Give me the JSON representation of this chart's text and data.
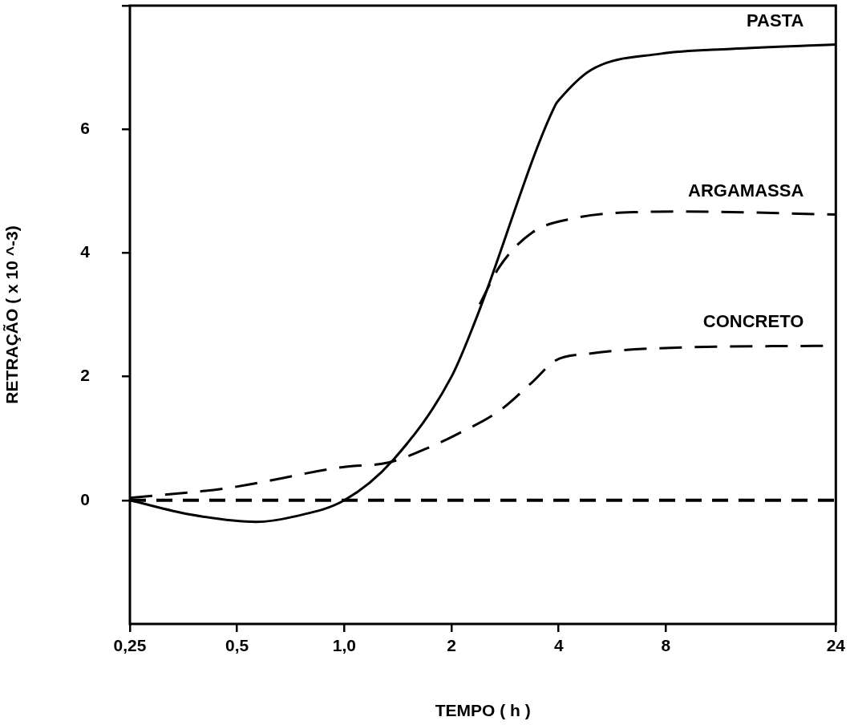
{
  "chart_data": {
    "type": "line",
    "xlabel": "TEMPO ( h )",
    "ylabel": "RETRAÇÃO ( x 10 ^-3)",
    "log": "x",
    "xlim": [
      0.25,
      24
    ],
    "xticks": [
      {
        "value": 0.25,
        "label": "0,25"
      },
      {
        "value": 0.5,
        "label": "0,5"
      },
      {
        "value": 1,
        "label": "1,0"
      },
      2,
      4,
      8,
      24
    ],
    "ylim": [
      -2,
      8
    ],
    "yticks": [
      0,
      2,
      4,
      6,
      {
        "value": 8,
        "label": null
      }
    ],
    "grid": false,
    "legend": false,
    "marker": "none",
    "ref_lines": [
      {
        "axis": "y",
        "value": 0,
        "line_style": "dashed",
        "color": "#000000"
      }
    ],
    "series": [
      {
        "name": "PASTA",
        "color": "#000000",
        "line_style": "solid",
        "x": [
          0.25,
          0.369,
          0.565,
          0.727,
          1.0,
          1.37,
          2.0,
          2.35,
          3.92,
          4.0,
          4.93,
          7.7,
          12.2,
          24
        ],
        "values": [
          0,
          -0.23,
          -0.35,
          -0.26,
          0,
          0.65,
          2.0,
          2.95,
          6.4,
          6.47,
          6.96,
          7.22,
          7.3,
          7.37
        ]
      },
      {
        "name": "ARGAMASSA",
        "color": "#000000",
        "line_style": "dashed",
        "x": [
          2.4,
          2.73,
          3.37,
          4.5,
          6.56,
          8.9,
          24
        ],
        "values": [
          3.17,
          3.78,
          4.33,
          4.57,
          4.66,
          4.67,
          4.62
        ]
      },
      {
        "name": "CONCRETO",
        "color": "#000000",
        "line_style": "dashed",
        "x": [
          0.25,
          0.46,
          1.0,
          1.33,
          1.77,
          2.06,
          2.73,
          3.37,
          3.92,
          4.86,
          7.7,
          24
        ],
        "values": [
          0.04,
          0.19,
          0.54,
          0.61,
          0.88,
          1.06,
          1.45,
          1.91,
          2.26,
          2.37,
          2.46,
          2.5
        ]
      }
    ]
  }
}
